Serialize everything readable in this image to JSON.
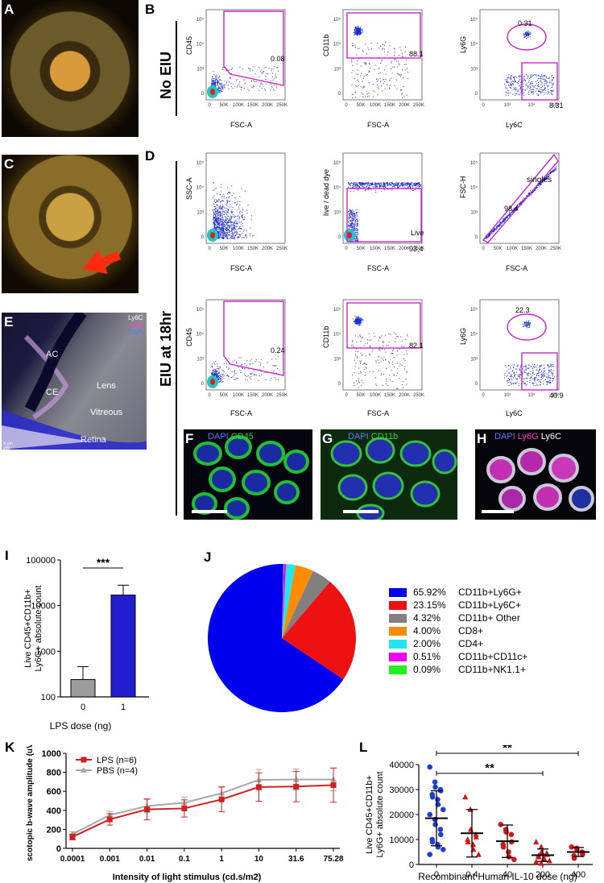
{
  "panels": {
    "A": "A",
    "B": "B",
    "C": "C",
    "D": "D",
    "E": "E",
    "F": "F",
    "G": "G",
    "H": "H",
    "I": "I",
    "J": "J",
    "K": "K",
    "L": "L"
  },
  "rows": {
    "no_eiu": "No EIU",
    "eiu18": "EIU at 18hr"
  },
  "flow": {
    "b1": {
      "xlabel": "FSC-A",
      "ylabel": "CD45",
      "value": "0.08"
    },
    "b2": {
      "xlabel": "FSC-A",
      "ylabel": "CD11b",
      "value": "88.1"
    },
    "b3": {
      "xlabel": "Ly6C",
      "ylabel": "Ly6G",
      "value1": "0.31",
      "value2": "8.31"
    },
    "d1": {
      "xlabel": "FSC-A",
      "ylabel": "SSC-A"
    },
    "d2": {
      "xlabel": "FSC-A",
      "ylabel": "live / dead dye",
      "gate": "Live",
      "value": "93.4"
    },
    "d3": {
      "xlabel": "FSC-A",
      "ylabel": "FSC-H",
      "gate": "singles",
      "value": "98.4"
    },
    "d4": {
      "xlabel": "FSC-A",
      "ylabel": "CD45",
      "value": "0.24"
    },
    "d5": {
      "xlabel": "FSC-A",
      "ylabel": "CD11b",
      "value": "82.1"
    },
    "d6": {
      "xlabel": "Ly6C",
      "ylabel": "Ly6G",
      "value1": "22.3",
      "value2": "40.9"
    },
    "xticks": [
      "0",
      "50K",
      "100K",
      "150K",
      "200K",
      "250K"
    ],
    "logticks": [
      "0",
      "10³",
      "10⁴",
      "10⁵"
    ]
  },
  "panelE": {
    "legend": [
      "Ly6C",
      "Ly6G",
      "DAPI"
    ],
    "labels": [
      "AC",
      "Lens",
      "CE",
      "Vitreous",
      "Retina"
    ],
    "scale": "X  μm 100"
  },
  "micro": {
    "F": {
      "stain1": "DAPI",
      "stain2": "CD45"
    },
    "G": {
      "stain1": "DAPI",
      "stain2": "CD11b"
    },
    "H": {
      "stain1": "DAPI",
      "stain2": "Ly6G",
      "stain3": "Ly6C"
    }
  },
  "chart_data": [
    {
      "type": "bar",
      "panel": "I",
      "ylabel": "Live CD45+CD11b+ Ly6G+ absolute count",
      "xlabel": "LPS dose (ng)",
      "categories": [
        "0",
        "1"
      ],
      "values": [
        240,
        17000
      ],
      "errors_upper": [
        460,
        28000
      ],
      "yscale": "log",
      "ylim": [
        100,
        100000
      ],
      "yticks": [
        "100",
        "1000",
        "10000",
        "100000"
      ],
      "significance": "***",
      "colors": [
        "#9c9c9c",
        "#1f1fd0"
      ]
    },
    {
      "type": "pie",
      "panel": "J",
      "labels": [
        "CD11b+Ly6G+",
        "CD11b+Ly6C+",
        "CD11b+ Other",
        "CD8+",
        "CD4+",
        "CD11b+CD11c+",
        "CD11b+NK1.1+"
      ],
      "percents": [
        "65.92%",
        "23.15%",
        "4.32%",
        "4.00%",
        "2.00%",
        "0.51%",
        "0.09%"
      ],
      "values": [
        65.92,
        23.15,
        4.32,
        4.0,
        2.0,
        0.51,
        0.09
      ],
      "colors": [
        "#0000ee",
        "#ee1111",
        "#808080",
        "#ff8c00",
        "#22e5ee",
        "#ee00ee",
        "#22ee22"
      ]
    },
    {
      "type": "line",
      "panel": "K",
      "ylabel": "scotopic b-wave amplitude (uV)",
      "xlabel": "Intensity of light stimulus (cd.s/m2)",
      "categories": [
        "0.0001",
        "0.001",
        "0.01",
        "0.1",
        "1",
        "10",
        "31.6",
        "75.28"
      ],
      "ylim": [
        0,
        1000
      ],
      "yticks": [
        "0",
        "200",
        "400",
        "600",
        "800",
        "1000"
      ],
      "series": [
        {
          "name": "LPS (n=6)",
          "values": [
            120,
            305,
            410,
            420,
            515,
            645,
            650,
            665
          ],
          "err": [
            30,
            60,
            110,
            90,
            130,
            150,
            160,
            180
          ],
          "color": "#d22020"
        },
        {
          "name": "PBS (n=4)",
          "values": [
            150,
            350,
            445,
            480,
            580,
            720,
            725,
            725
          ],
          "err": [
            25,
            40,
            70,
            60,
            70,
            110,
            110,
            120
          ],
          "color": "#a8a8a8"
        }
      ]
    },
    {
      "type": "scatter",
      "panel": "L",
      "ylabel": "Live CD45+CD11b+ Ly6G+ absolute count",
      "xlabel": "Recombinant Human IL-10 dose (ng)",
      "categories": [
        "0",
        "0.4",
        "40",
        "200",
        "400"
      ],
      "ylim": [
        0,
        40000
      ],
      "yticks": [
        "0",
        "10000",
        "20000",
        "30000",
        "40000"
      ],
      "means": [
        18500,
        12500,
        9300,
        3700,
        5000
      ],
      "sd": [
        11000,
        9500,
        6500,
        2500,
        1800
      ],
      "markers": [
        "circle",
        "triangle",
        "circle",
        "triangle",
        "circle"
      ],
      "colors": [
        "#1f3fd0",
        "#d01818",
        "#d01818",
        "#d01818",
        "#d01818"
      ],
      "points": [
        [
          39000,
          33000,
          31000,
          30000,
          29500,
          28000,
          27000,
          26000,
          24000,
          22000,
          20000,
          18000,
          16000,
          14000,
          12000,
          10000,
          9000,
          8000,
          7000,
          6000,
          4000
        ],
        [
          27000,
          22000,
          14000,
          12000,
          11000,
          10000,
          9000,
          8000,
          6000,
          4000
        ],
        [
          16000,
          14000,
          13000,
          12000,
          9000,
          8000,
          7000,
          5000,
          3000,
          2000
        ],
        [
          9000,
          7000,
          5000,
          4500,
          4000,
          3500,
          3000,
          2500,
          2000,
          1500,
          1000,
          500
        ],
        [
          7000,
          6500,
          6000,
          5000,
          4000,
          3500,
          2500
        ]
      ],
      "significance": [
        {
          "from": "0",
          "to": "200",
          "label": "**"
        },
        {
          "from": "0",
          "to": "400",
          "label": "**"
        }
      ]
    }
  ]
}
